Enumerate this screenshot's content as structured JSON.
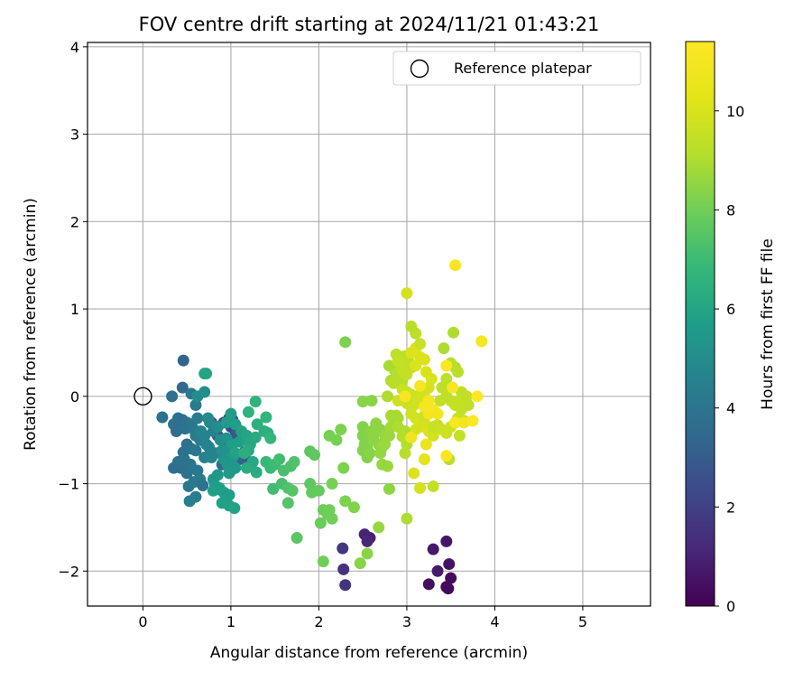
{
  "chart_data": {
    "type": "scatter",
    "title": "FOV centre drift starting at 2024/11/21 01:43:21",
    "xlabel": "Angular distance from reference (arcmin)",
    "ylabel": "Rotation from reference (arcmin)",
    "xlim": [
      -0.63,
      5.77
    ],
    "ylim": [
      -2.4,
      4.05
    ],
    "xticks": [
      0,
      1,
      2,
      3,
      4,
      5
    ],
    "yticks": [
      -2,
      -1,
      0,
      1,
      2,
      3,
      4
    ],
    "grid": true,
    "legend": {
      "position": "top-right",
      "entries": [
        {
          "label": "Reference platepar",
          "marker": "open-circle"
        }
      ]
    },
    "reference_point": {
      "x": 0,
      "y": 0
    },
    "colorbar": {
      "label": "Hours from first FF file",
      "colormap": "viridis",
      "range": [
        0,
        11.4
      ],
      "ticks": [
        0,
        2,
        4,
        6,
        8,
        10
      ]
    },
    "points": [
      [
        3.47,
        -2.2,
        0.1
      ],
      [
        3.45,
        -2.18,
        0.2
      ],
      [
        3.5,
        -2.08,
        0.3
      ],
      [
        3.25,
        -2.15,
        0.4
      ],
      [
        3.48,
        -1.92,
        0.5
      ],
      [
        3.45,
        -1.66,
        0.6
      ],
      [
        3.3,
        -1.75,
        0.7
      ],
      [
        3.35,
        -2.0,
        0.8
      ],
      [
        2.58,
        -1.62,
        0.9
      ],
      [
        2.52,
        -1.58,
        1.0
      ],
      [
        2.55,
        -1.66,
        1.1
      ],
      [
        2.28,
        -1.98,
        1.5
      ],
      [
        2.3,
        -2.16,
        1.6
      ],
      [
        2.27,
        -1.74,
        1.7
      ],
      [
        0.98,
        -0.25,
        2.1
      ],
      [
        1.0,
        -0.35,
        2.2
      ],
      [
        0.93,
        -0.5,
        2.3
      ],
      [
        1.02,
        -0.27,
        2.4
      ],
      [
        0.85,
        -0.45,
        2.5
      ],
      [
        0.92,
        -0.3,
        2.6
      ],
      [
        0.78,
        -0.3,
        2.7
      ],
      [
        1.05,
        -0.45,
        2.8
      ],
      [
        0.96,
        -0.56,
        2.9
      ],
      [
        1.08,
        -0.38,
        3.0
      ],
      [
        1.2,
        -0.75,
        3.1
      ],
      [
        1.1,
        -0.72,
        3.2
      ],
      [
        1.15,
        -0.64,
        3.3
      ],
      [
        1.0,
        -0.85,
        3.4
      ],
      [
        0.9,
        -0.78,
        3.5
      ],
      [
        0.46,
        0.41,
        3.3
      ],
      [
        0.45,
        0.1,
        3.5
      ],
      [
        0.33,
        0.0,
        3.8
      ],
      [
        0.22,
        -0.24,
        3.8
      ],
      [
        0.4,
        -0.25,
        3.9
      ],
      [
        0.38,
        -0.4,
        3.6
      ],
      [
        0.45,
        -0.27,
        3.7
      ],
      [
        0.5,
        -0.3,
        3.8
      ],
      [
        0.48,
        -0.37,
        3.9
      ],
      [
        0.55,
        -0.32,
        4.0
      ],
      [
        0.42,
        -0.33,
        3.9
      ],
      [
        0.38,
        -0.3,
        3.8
      ],
      [
        0.35,
        -0.32,
        3.8
      ],
      [
        0.35,
        -0.82,
        3.7
      ],
      [
        0.43,
        -0.82,
        3.7
      ],
      [
        0.46,
        -0.64,
        3.8
      ],
      [
        0.5,
        -0.55,
        3.8
      ],
      [
        0.55,
        -0.6,
        3.9
      ],
      [
        0.6,
        -0.62,
        4.0
      ],
      [
        0.54,
        -0.78,
        4.0
      ],
      [
        0.47,
        -0.72,
        3.9
      ],
      [
        0.4,
        -0.75,
        3.8
      ],
      [
        0.5,
        -0.88,
        3.9
      ],
      [
        0.52,
        -1.03,
        4.1
      ],
      [
        0.62,
        -0.85,
        4.1
      ],
      [
        0.58,
        -0.98,
        4.2
      ],
      [
        0.65,
        -0.95,
        4.2
      ],
      [
        0.68,
        -1.02,
        3.9
      ],
      [
        0.6,
        -1.15,
        4.3
      ],
      [
        0.53,
        -1.2,
        4.4
      ],
      [
        0.55,
        0.03,
        4.1
      ],
      [
        0.6,
        -0.1,
        4.2
      ],
      [
        0.62,
        -0.25,
        4.3
      ],
      [
        0.58,
        -0.38,
        4.2
      ],
      [
        0.6,
        -0.45,
        4.3
      ],
      [
        0.65,
        -0.5,
        4.4
      ],
      [
        0.7,
        -0.45,
        4.5
      ],
      [
        0.66,
        -0.4,
        4.6
      ],
      [
        0.72,
        -0.55,
        4.5
      ],
      [
        0.75,
        -0.58,
        4.6
      ],
      [
        0.7,
        -0.7,
        4.5
      ],
      [
        0.78,
        -0.7,
        4.7
      ],
      [
        0.82,
        -0.65,
        4.6
      ],
      [
        0.8,
        -0.4,
        4.6
      ],
      [
        0.76,
        -0.3,
        4.8
      ],
      [
        0.74,
        -0.25,
        4.9
      ],
      [
        0.62,
        0.0,
        5.0
      ],
      [
        0.7,
        0.05,
        5.1
      ],
      [
        0.85,
        -0.35,
        5.0
      ],
      [
        0.88,
        -0.5,
        5.1
      ],
      [
        0.95,
        -0.48,
        5.2
      ],
      [
        0.98,
        -0.6,
        5.3
      ],
      [
        0.9,
        -0.62,
        5.2
      ],
      [
        0.92,
        -0.72,
        5.3
      ],
      [
        0.96,
        -0.78,
        5.4
      ],
      [
        1.02,
        -0.7,
        5.4
      ],
      [
        1.05,
        -0.82,
        5.5
      ],
      [
        0.98,
        -0.88,
        5.5
      ],
      [
        0.85,
        -0.9,
        5.4
      ],
      [
        0.8,
        -0.95,
        5.4
      ],
      [
        0.82,
        -1.02,
        5.6
      ],
      [
        0.88,
        -1.07,
        5.6
      ],
      [
        0.92,
        -1.1,
        5.5
      ],
      [
        0.95,
        -1.12,
        5.7
      ],
      [
        0.98,
        -1.13,
        5.7
      ],
      [
        0.9,
        -1.22,
        5.8
      ],
      [
        0.98,
        -1.25,
        5.8
      ],
      [
        1.04,
        -1.28,
        5.9
      ],
      [
        1.0,
        -0.2,
        5.6
      ],
      [
        0.95,
        -0.3,
        5.6
      ],
      [
        1.05,
        -0.32,
        5.7
      ],
      [
        1.02,
        -0.55,
        5.7
      ],
      [
        1.1,
        -0.52,
        5.8
      ],
      [
        1.12,
        -0.4,
        5.9
      ],
      [
        1.05,
        -0.65,
        5.9
      ],
      [
        0.87,
        -1.05,
        5.8
      ],
      [
        0.8,
        -1.08,
        5.8
      ],
      [
        0.7,
        0.26,
        6.0
      ],
      [
        0.72,
        0.26,
        6.0
      ],
      [
        1.18,
        -0.45,
        6.0
      ],
      [
        1.22,
        -0.55,
        6.1
      ],
      [
        1.28,
        -0.47,
        6.2
      ],
      [
        1.2,
        -0.62,
        6.2
      ],
      [
        1.25,
        -0.75,
        6.2
      ],
      [
        1.29,
        -0.87,
        6.3
      ],
      [
        1.18,
        -0.82,
        6.3
      ],
      [
        1.15,
        -0.65,
        6.4
      ],
      [
        1.38,
        -0.4,
        6.4
      ],
      [
        1.3,
        -0.32,
        6.5
      ],
      [
        1.42,
        -0.42,
        6.5
      ],
      [
        1.2,
        -0.18,
        6.6
      ],
      [
        1.28,
        -0.06,
        6.6
      ],
      [
        1.4,
        -0.24,
        6.7
      ],
      [
        1.45,
        -0.48,
        6.8
      ],
      [
        1.4,
        -0.75,
        6.9
      ],
      [
        1.45,
        -0.82,
        6.9
      ],
      [
        1.5,
        -0.78,
        7.0
      ],
      [
        1.48,
        -1.06,
        7.1
      ],
      [
        1.55,
        -0.72,
        7.1
      ],
      [
        1.6,
        -0.85,
        7.2
      ],
      [
        1.58,
        -1.0,
        7.2
      ],
      [
        1.68,
        -0.8,
        7.3
      ],
      [
        1.72,
        -0.75,
        7.4
      ],
      [
        1.65,
        -1.05,
        7.4
      ],
      [
        1.7,
        -1.08,
        7.5
      ],
      [
        1.65,
        -1.22,
        7.5
      ],
      [
        1.75,
        -1.62,
        7.6
      ],
      [
        1.9,
        -0.63,
        7.6
      ],
      [
        1.95,
        -0.67,
        7.7
      ],
      [
        1.9,
        -1.0,
        7.7
      ],
      [
        1.92,
        -1.1,
        7.8
      ],
      [
        2.0,
        -1.08,
        7.8
      ],
      [
        2.05,
        -1.3,
        7.9
      ],
      [
        2.02,
        -1.45,
        7.9
      ],
      [
        2.1,
        -1.35,
        8.0
      ],
      [
        2.15,
        -1.4,
        8.0
      ],
      [
        2.12,
        -1.3,
        8.0
      ],
      [
        2.05,
        -1.89,
        8.0
      ],
      [
        2.15,
        -1.0,
        8.1
      ],
      [
        2.12,
        -0.45,
        8.1
      ],
      [
        2.2,
        -0.5,
        8.1
      ],
      [
        2.25,
        -0.38,
        8.2
      ],
      [
        2.28,
        -0.82,
        8.2
      ],
      [
        2.3,
        0.62,
        8.2
      ],
      [
        2.3,
        -1.2,
        8.2
      ],
      [
        2.4,
        -1.27,
        8.3
      ],
      [
        2.5,
        -0.35,
        8.3
      ],
      [
        2.5,
        -0.45,
        8.3
      ],
      [
        2.52,
        -0.55,
        8.3
      ],
      [
        2.55,
        -0.6,
        8.3
      ],
      [
        2.5,
        -0.62,
        8.3
      ],
      [
        2.55,
        -0.7,
        8.3
      ],
      [
        2.58,
        -0.65,
        8.4
      ],
      [
        2.6,
        -0.05,
        8.4
      ],
      [
        2.5,
        -0.06,
        8.4
      ],
      [
        2.55,
        -1.8,
        8.4
      ],
      [
        2.47,
        -1.91,
        8.4
      ],
      [
        2.6,
        -0.4,
        8.4
      ],
      [
        2.62,
        -0.45,
        8.5
      ],
      [
        2.62,
        -0.5,
        8.5
      ],
      [
        2.65,
        -0.35,
        8.5
      ],
      [
        2.65,
        -0.31,
        8.5
      ],
      [
        2.7,
        -0.38,
        8.5
      ],
      [
        2.68,
        -0.55,
        8.5
      ],
      [
        2.7,
        -0.65,
        8.6
      ],
      [
        2.75,
        -0.45,
        8.6
      ],
      [
        2.72,
        -0.58,
        8.6
      ],
      [
        2.68,
        -1.5,
        8.6
      ],
      [
        2.78,
        -0.8,
        8.7
      ],
      [
        2.8,
        -0.45,
        8.7
      ],
      [
        2.82,
        -0.35,
        8.8
      ],
      [
        2.75,
        -0.55,
        8.7
      ],
      [
        2.72,
        -0.78,
        8.6
      ],
      [
        2.8,
        -1.06,
        8.5
      ],
      [
        2.85,
        -0.3,
        8.8
      ],
      [
        2.9,
        -0.25,
        8.9
      ],
      [
        2.88,
        -0.22,
        8.9
      ],
      [
        2.82,
        -0.22,
        8.9
      ],
      [
        2.9,
        -0.35,
        9.0
      ],
      [
        2.98,
        -0.4,
        9.0
      ],
      [
        2.95,
        -0.46,
        9.1
      ],
      [
        3.0,
        -0.55,
        9.1
      ],
      [
        2.98,
        -0.65,
        9.2
      ],
      [
        3.0,
        -1.4,
        9.0
      ],
      [
        2.78,
        0.0,
        9.0
      ],
      [
        2.82,
        0.18,
        9.0
      ],
      [
        2.86,
        0.3,
        9.1
      ],
      [
        2.9,
        0.22,
        9.1
      ],
      [
        2.95,
        0.18,
        9.2
      ],
      [
        2.85,
        0.15,
        9.2
      ],
      [
        2.8,
        0.35,
        8.9
      ],
      [
        2.88,
        0.48,
        9.3
      ],
      [
        2.98,
        0.46,
        9.3
      ],
      [
        3.02,
        0.4,
        9.4
      ],
      [
        3.05,
        0.33,
        9.4
      ],
      [
        3.0,
        0.25,
        9.5
      ],
      [
        2.95,
        0.3,
        9.5
      ],
      [
        2.9,
        0.4,
        9.5
      ],
      [
        2.95,
        0.08,
        9.6
      ],
      [
        3.0,
        0.05,
        9.6
      ],
      [
        3.05,
        0.02,
        9.7
      ],
      [
        3.0,
        -0.08,
        9.7
      ],
      [
        2.9,
        -0.05,
        9.7
      ],
      [
        3.08,
        -0.1,
        9.7
      ],
      [
        3.12,
        -0.05,
        9.8
      ],
      [
        3.05,
        -0.2,
        9.8
      ],
      [
        3.1,
        -0.25,
        9.8
      ],
      [
        3.15,
        -0.35,
        9.9
      ],
      [
        3.2,
        -0.3,
        9.9
      ],
      [
        3.1,
        -0.38,
        9.9
      ],
      [
        3.25,
        -0.4,
        10.0
      ],
      [
        3.3,
        -0.45,
        9.8
      ],
      [
        3.3,
        -0.35,
        9.6
      ],
      [
        3.35,
        -0.33,
        9.6
      ],
      [
        3.2,
        -0.22,
        9.7
      ],
      [
        3.15,
        0.02,
        9.8
      ],
      [
        3.2,
        0.05,
        9.9
      ],
      [
        3.25,
        0.1,
        9.9
      ],
      [
        3.28,
        0.2,
        10.0
      ],
      [
        3.22,
        0.28,
        10.0
      ],
      [
        3.1,
        0.35,
        10.0
      ],
      [
        3.15,
        0.45,
        10.1
      ],
      [
        3.2,
        0.42,
        10.1
      ],
      [
        3.05,
        0.5,
        10.1
      ],
      [
        3.1,
        0.55,
        10.1
      ],
      [
        3.15,
        0.6,
        9.6
      ],
      [
        3.1,
        0.72,
        9.3
      ],
      [
        3.05,
        0.8,
        9.2
      ],
      [
        3.0,
        1.18,
        9.9
      ],
      [
        3.42,
        0.55,
        9.0
      ],
      [
        3.53,
        0.73,
        9.0
      ],
      [
        3.55,
        0.33,
        9.1
      ],
      [
        3.58,
        0.28,
        9.2
      ],
      [
        3.5,
        0.38,
        9.2
      ],
      [
        3.45,
        0.2,
        9.3
      ],
      [
        3.4,
        0.1,
        9.3
      ],
      [
        3.45,
        0.0,
        9.4
      ],
      [
        3.38,
        -0.05,
        9.4
      ],
      [
        3.5,
        -0.05,
        9.4
      ],
      [
        3.55,
        -0.1,
        9.5
      ],
      [
        3.6,
        -0.05,
        9.5
      ],
      [
        3.62,
        -0.15,
        9.5
      ],
      [
        3.58,
        -0.25,
        9.6
      ],
      [
        3.55,
        -0.3,
        9.6
      ],
      [
        3.5,
        -0.35,
        9.7
      ],
      [
        3.45,
        -0.42,
        9.7
      ],
      [
        3.4,
        -0.38,
        9.7
      ],
      [
        3.65,
        -0.28,
        9.5
      ],
      [
        3.7,
        -0.1,
        9.4
      ],
      [
        3.62,
        0.05,
        9.4
      ],
      [
        3.68,
        0.0,
        9.4
      ],
      [
        3.6,
        -0.45,
        9.5
      ],
      [
        3.48,
        -0.72,
        9.2
      ],
      [
        3.3,
        -1.03,
        9.5
      ],
      [
        3.15,
        -1.05,
        9.9
      ],
      [
        3.08,
        -0.88,
        10.1
      ],
      [
        3.2,
        -0.72,
        10.3
      ],
      [
        3.22,
        -0.55,
        10.6
      ],
      [
        3.05,
        -0.47,
        10.8
      ],
      [
        3.25,
        -0.2,
        10.9
      ],
      [
        3.3,
        -0.15,
        11.0
      ],
      [
        3.2,
        -0.12,
        11.1
      ],
      [
        3.25,
        -0.05,
        11.0
      ],
      [
        3.15,
        0.12,
        11.1
      ],
      [
        3.35,
        -0.2,
        10.9
      ],
      [
        3.52,
        0.1,
        11.2
      ],
      [
        3.45,
        0.35,
        11.3
      ],
      [
        3.55,
        -0.3,
        11.2
      ],
      [
        3.65,
        -0.3,
        10.9
      ],
      [
        3.75,
        -0.28,
        11.3
      ],
      [
        3.8,
        0.0,
        11.4
      ],
      [
        3.85,
        0.63,
        11.0
      ],
      [
        3.55,
        1.5,
        11.2
      ],
      [
        3.45,
        -0.68,
        11.2
      ],
      [
        2.98,
        0.0,
        11.1
      ]
    ]
  }
}
